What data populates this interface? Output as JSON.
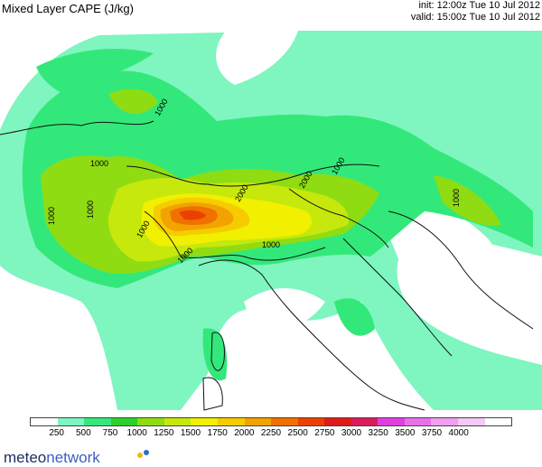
{
  "header": {
    "title": "Mixed Layer CAPE (J/kg)",
    "init": "init: 12:00z Tue 10 Jul 2012",
    "valid": "valid: 15:00z Tue 10 Jul 2012"
  },
  "map": {
    "contour_labels": [
      "1000",
      "1000",
      "1000",
      "1000",
      "1000",
      "1000",
      "1000",
      "1000",
      "2000",
      "2000",
      "1000"
    ]
  },
  "legend": {
    "colors": [
      "#ffffff",
      "#7ff5c0",
      "#33e87a",
      "#2bd12a",
      "#8fdc12",
      "#c6e80c",
      "#f0f000",
      "#f6cc00",
      "#f2a300",
      "#f07000",
      "#eb4000",
      "#e01a1a",
      "#dc1c5a",
      "#e040e0",
      "#e870e8",
      "#f0a0f0",
      "#f6c8f6",
      "#ffffff"
    ],
    "ticks": [
      "250",
      "500",
      "750",
      "1000",
      "1250",
      "1500",
      "1750",
      "2000",
      "2250",
      "2500",
      "2750",
      "3000",
      "3250",
      "3500",
      "3750",
      "4000"
    ]
  },
  "brand": {
    "logo_a": "meteo",
    "logo_b": "network",
    "dot_colors": [
      "#f2b800",
      "#2f6ad0"
    ]
  }
}
